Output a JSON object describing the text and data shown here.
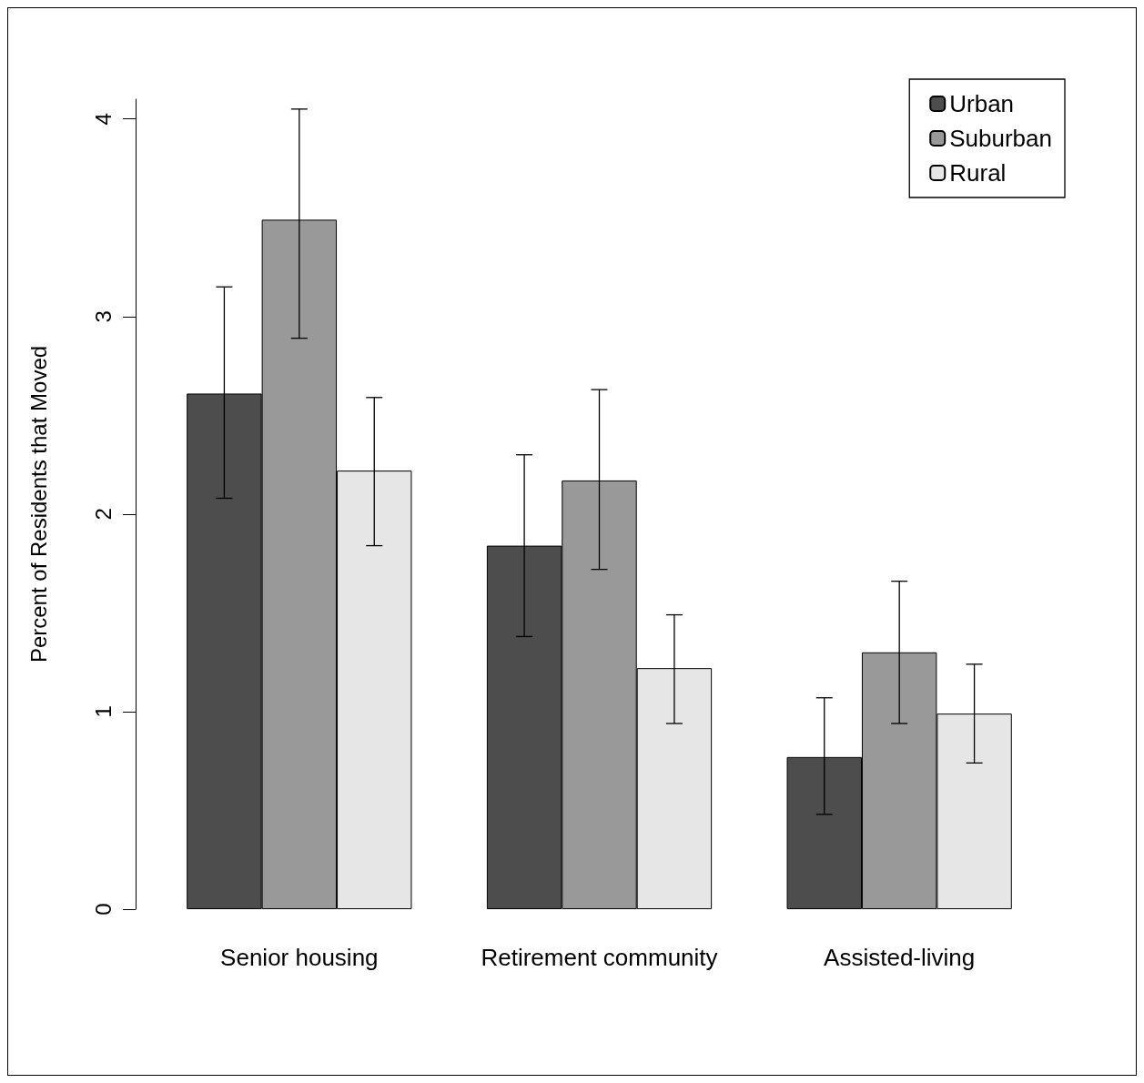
{
  "chart_data": {
    "type": "bar",
    "ylabel": "Percent of Residents that Moved",
    "categories": [
      "Senior housing",
      "Retirement community",
      "Assisted-living"
    ],
    "series": [
      {
        "name": "Urban",
        "color": "#4d4d4d",
        "values": [
          2.61,
          1.84,
          0.77
        ],
        "errors": [
          [
            2.08,
            3.15
          ],
          [
            1.38,
            2.3
          ],
          [
            0.48,
            1.07
          ]
        ]
      },
      {
        "name": "Suburban",
        "color": "#999999",
        "values": [
          3.49,
          2.17,
          1.3
        ],
        "errors": [
          [
            2.89,
            4.05
          ],
          [
            1.72,
            2.63
          ],
          [
            0.94,
            1.66
          ]
        ]
      },
      {
        "name": "Rural",
        "color": "#e6e6e6",
        "values": [
          2.22,
          1.22,
          0.99
        ],
        "errors": [
          [
            1.84,
            2.59
          ],
          [
            0.94,
            1.49
          ],
          [
            0.74,
            1.24
          ]
        ]
      }
    ],
    "ylim": [
      0,
      4.1
    ],
    "yticks": [
      0,
      1,
      2,
      3,
      4
    ],
    "grid": false,
    "legend": "top right"
  }
}
